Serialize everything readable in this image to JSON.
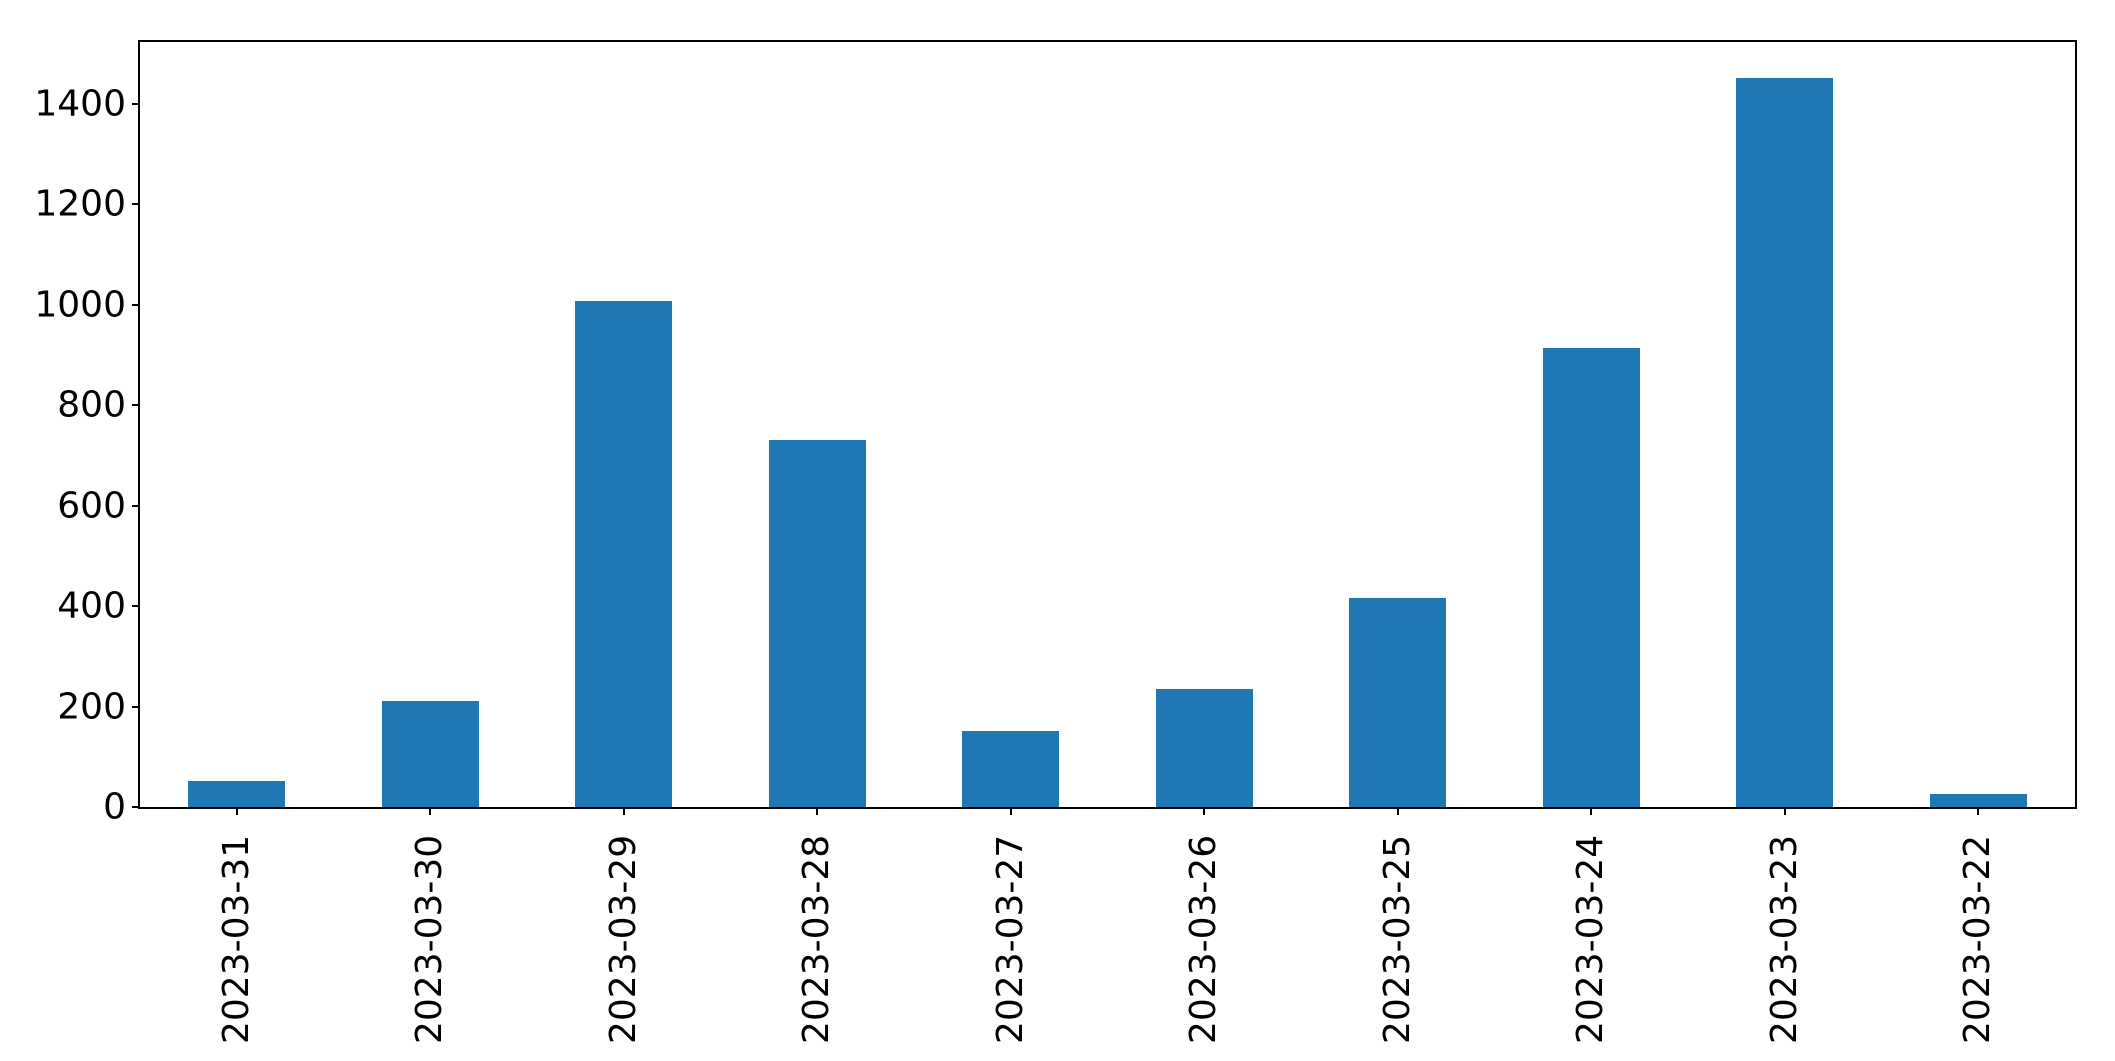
{
  "chart_data": {
    "type": "bar",
    "title": "",
    "xlabel": "",
    "ylabel": "",
    "categories": [
      "2023-03-31",
      "2023-03-30",
      "2023-03-29",
      "2023-03-28",
      "2023-03-27",
      "2023-03-26",
      "2023-03-25",
      "2023-03-24",
      "2023-03-23",
      "2023-03-22"
    ],
    "values": [
      52,
      210,
      1008,
      730,
      152,
      234,
      416,
      913,
      1450,
      25
    ],
    "yticks": [
      0,
      200,
      400,
      600,
      800,
      1000,
      1200,
      1400
    ],
    "ylim": [
      0,
      1522.5
    ],
    "bar_color": "#1f77b4",
    "spine_color": "#000000",
    "background_color": "#ffffff",
    "grid": "off",
    "legend": "none",
    "x_tick_rotation_deg": 90
  }
}
